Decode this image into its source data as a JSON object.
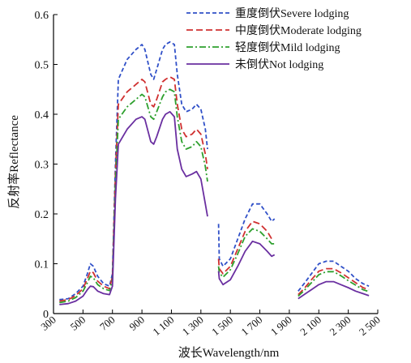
{
  "chart_data": {
    "type": "line",
    "title": "",
    "xlabel": "波长Wavelength/nm",
    "ylabel": "反射率Reflectance",
    "xlim": [
      300,
      2500
    ],
    "ylim": [
      0,
      0.6
    ],
    "x_ticks": [
      "300",
      "500",
      "700",
      "900",
      "1 100",
      "1 300",
      "1 500",
      "1 700",
      "1 900",
      "2 100",
      "2 300",
      "2 500"
    ],
    "x_tick_values": [
      300,
      500,
      700,
      900,
      1100,
      1300,
      1500,
      1700,
      1900,
      2100,
      2300,
      2500
    ],
    "y_ticks": [
      "0",
      "0.1",
      "0.2",
      "0.3",
      "0.4",
      "0.5",
      "0.6"
    ],
    "y_tick_values": [
      0,
      0.1,
      0.2,
      0.3,
      0.4,
      0.5,
      0.6
    ],
    "legend_position": "top-right",
    "grid": false,
    "series": [
      {
        "name": "重度倒伏Severe lodging",
        "color": "#3050c8",
        "dash": "dashed",
        "segments": [
          [
            [
              340,
              0.028
            ],
            [
              400,
              0.03
            ],
            [
              450,
              0.04
            ],
            [
              500,
              0.055
            ],
            [
              530,
              0.08
            ],
            [
              550,
              0.1
            ],
            [
              570,
              0.095
            ],
            [
              600,
              0.075
            ],
            [
              640,
              0.06
            ],
            [
              680,
              0.055
            ],
            [
              700,
              0.08
            ],
            [
              720,
              0.3
            ],
            [
              740,
              0.47
            ],
            [
              800,
              0.51
            ],
            [
              860,
              0.53
            ],
            [
              900,
              0.54
            ],
            [
              920,
              0.53
            ],
            [
              960,
              0.48
            ],
            [
              980,
              0.47
            ],
            [
              1000,
              0.49
            ],
            [
              1040,
              0.53
            ],
            [
              1060,
              0.54
            ],
            [
              1090,
              0.545
            ],
            [
              1120,
              0.54
            ],
            [
              1140,
              0.48
            ],
            [
              1170,
              0.42
            ],
            [
              1200,
              0.405
            ],
            [
              1240,
              0.41
            ],
            [
              1270,
              0.42
            ],
            [
              1300,
              0.41
            ],
            [
              1330,
              0.37
            ],
            [
              1345,
              0.33
            ]
          ],
          [
            [
              1420,
              0.18
            ],
            [
              1425,
              0.11
            ],
            [
              1450,
              0.095
            ],
            [
              1500,
              0.11
            ],
            [
              1550,
              0.15
            ],
            [
              1600,
              0.19
            ],
            [
              1650,
              0.22
            ],
            [
              1700,
              0.22
            ],
            [
              1750,
              0.2
            ],
            [
              1780,
              0.185
            ],
            [
              1800,
              0.19
            ]
          ],
          [
            [
              1960,
              0.045
            ],
            [
              2000,
              0.06
            ],
            [
              2050,
              0.08
            ],
            [
              2100,
              0.1
            ],
            [
              2150,
              0.105
            ],
            [
              2200,
              0.105
            ],
            [
              2250,
              0.095
            ],
            [
              2300,
              0.085
            ],
            [
              2350,
              0.07
            ],
            [
              2400,
              0.06
            ],
            [
              2440,
              0.055
            ]
          ]
        ]
      },
      {
        "name": "中度倒伏Moderate lodging",
        "color": "#d03030",
        "dash": "longdash",
        "segments": [
          [
            [
              340,
              0.025
            ],
            [
              400,
              0.028
            ],
            [
              450,
              0.036
            ],
            [
              500,
              0.05
            ],
            [
              530,
              0.07
            ],
            [
              550,
              0.085
            ],
            [
              570,
              0.082
            ],
            [
              600,
              0.065
            ],
            [
              640,
              0.055
            ],
            [
              680,
              0.05
            ],
            [
              700,
              0.075
            ],
            [
              720,
              0.28
            ],
            [
              740,
              0.42
            ],
            [
              800,
              0.445
            ],
            [
              860,
              0.46
            ],
            [
              900,
              0.47
            ],
            [
              920,
              0.465
            ],
            [
              960,
              0.42
            ],
            [
              980,
              0.415
            ],
            [
              1000,
              0.43
            ],
            [
              1040,
              0.465
            ],
            [
              1060,
              0.47
            ],
            [
              1090,
              0.475
            ],
            [
              1120,
              0.47
            ],
            [
              1140,
              0.42
            ],
            [
              1170,
              0.37
            ],
            [
              1200,
              0.355
            ],
            [
              1240,
              0.36
            ],
            [
              1270,
              0.37
            ],
            [
              1300,
              0.36
            ],
            [
              1330,
              0.32
            ],
            [
              1345,
              0.29
            ]
          ],
          [
            [
              1420,
              0.11
            ],
            [
              1425,
              0.09
            ],
            [
              1450,
              0.08
            ],
            [
              1500,
              0.095
            ],
            [
              1550,
              0.13
            ],
            [
              1600,
              0.165
            ],
            [
              1650,
              0.185
            ],
            [
              1700,
              0.18
            ],
            [
              1750,
              0.165
            ],
            [
              1780,
              0.15
            ],
            [
              1800,
              0.15
            ]
          ],
          [
            [
              1960,
              0.038
            ],
            [
              2000,
              0.05
            ],
            [
              2050,
              0.068
            ],
            [
              2100,
              0.085
            ],
            [
              2150,
              0.09
            ],
            [
              2200,
              0.09
            ],
            [
              2250,
              0.082
            ],
            [
              2300,
              0.072
            ],
            [
              2350,
              0.062
            ],
            [
              2400,
              0.052
            ],
            [
              2440,
              0.048
            ]
          ]
        ]
      },
      {
        "name": "轻度倒伏Mild lodging",
        "color": "#2ea02e",
        "dash": "dashdot",
        "segments": [
          [
            [
              340,
              0.022
            ],
            [
              400,
              0.025
            ],
            [
              450,
              0.032
            ],
            [
              500,
              0.045
            ],
            [
              530,
              0.062
            ],
            [
              550,
              0.075
            ],
            [
              570,
              0.072
            ],
            [
              600,
              0.058
            ],
            [
              640,
              0.05
            ],
            [
              680,
              0.046
            ],
            [
              700,
              0.068
            ],
            [
              720,
              0.26
            ],
            [
              740,
              0.39
            ],
            [
              800,
              0.415
            ],
            [
              860,
              0.43
            ],
            [
              900,
              0.44
            ],
            [
              920,
              0.435
            ],
            [
              960,
              0.395
            ],
            [
              980,
              0.39
            ],
            [
              1000,
              0.405
            ],
            [
              1040,
              0.435
            ],
            [
              1060,
              0.445
            ],
            [
              1090,
              0.45
            ],
            [
              1120,
              0.445
            ],
            [
              1140,
              0.395
            ],
            [
              1170,
              0.345
            ],
            [
              1200,
              0.33
            ],
            [
              1240,
              0.335
            ],
            [
              1270,
              0.345
            ],
            [
              1300,
              0.335
            ],
            [
              1330,
              0.295
            ],
            [
              1345,
              0.265
            ]
          ],
          [
            [
              1420,
              0.095
            ],
            [
              1425,
              0.082
            ],
            [
              1450,
              0.073
            ],
            [
              1500,
              0.088
            ],
            [
              1550,
              0.12
            ],
            [
              1600,
              0.155
            ],
            [
              1650,
              0.17
            ],
            [
              1700,
              0.165
            ],
            [
              1750,
              0.15
            ],
            [
              1780,
              0.14
            ],
            [
              1800,
              0.14
            ]
          ],
          [
            [
              1960,
              0.035
            ],
            [
              2000,
              0.046
            ],
            [
              2050,
              0.062
            ],
            [
              2100,
              0.078
            ],
            [
              2150,
              0.084
            ],
            [
              2200,
              0.084
            ],
            [
              2250,
              0.076
            ],
            [
              2300,
              0.066
            ],
            [
              2350,
              0.057
            ],
            [
              2400,
              0.048
            ],
            [
              2440,
              0.044
            ]
          ]
        ]
      },
      {
        "name": "未倒伏Not lodging",
        "color": "#6a2fa0",
        "dash": "solid",
        "segments": [
          [
            [
              340,
              0.018
            ],
            [
              400,
              0.02
            ],
            [
              450,
              0.025
            ],
            [
              500,
              0.035
            ],
            [
              530,
              0.048
            ],
            [
              550,
              0.055
            ],
            [
              570,
              0.054
            ],
            [
              600,
              0.045
            ],
            [
              640,
              0.04
            ],
            [
              680,
              0.038
            ],
            [
              700,
              0.055
            ],
            [
              720,
              0.23
            ],
            [
              740,
              0.34
            ],
            [
              800,
              0.37
            ],
            [
              860,
              0.39
            ],
            [
              900,
              0.395
            ],
            [
              920,
              0.39
            ],
            [
              960,
              0.345
            ],
            [
              980,
              0.34
            ],
            [
              1000,
              0.355
            ],
            [
              1040,
              0.39
            ],
            [
              1060,
              0.4
            ],
            [
              1090,
              0.405
            ],
            [
              1120,
              0.395
            ],
            [
              1140,
              0.33
            ],
            [
              1170,
              0.29
            ],
            [
              1200,
              0.275
            ],
            [
              1240,
              0.28
            ],
            [
              1270,
              0.285
            ],
            [
              1300,
              0.27
            ],
            [
              1330,
              0.22
            ],
            [
              1345,
              0.195
            ]
          ],
          [
            [
              1420,
              0.085
            ],
            [
              1425,
              0.07
            ],
            [
              1450,
              0.058
            ],
            [
              1500,
              0.068
            ],
            [
              1550,
              0.095
            ],
            [
              1600,
              0.125
            ],
            [
              1650,
              0.145
            ],
            [
              1700,
              0.14
            ],
            [
              1750,
              0.125
            ],
            [
              1780,
              0.115
            ],
            [
              1800,
              0.118
            ]
          ],
          [
            [
              1960,
              0.03
            ],
            [
              2000,
              0.038
            ],
            [
              2050,
              0.048
            ],
            [
              2100,
              0.058
            ],
            [
              2150,
              0.064
            ],
            [
              2200,
              0.064
            ],
            [
              2250,
              0.058
            ],
            [
              2300,
              0.052
            ],
            [
              2350,
              0.045
            ],
            [
              2400,
              0.04
            ],
            [
              2440,
              0.036
            ]
          ]
        ]
      }
    ]
  }
}
